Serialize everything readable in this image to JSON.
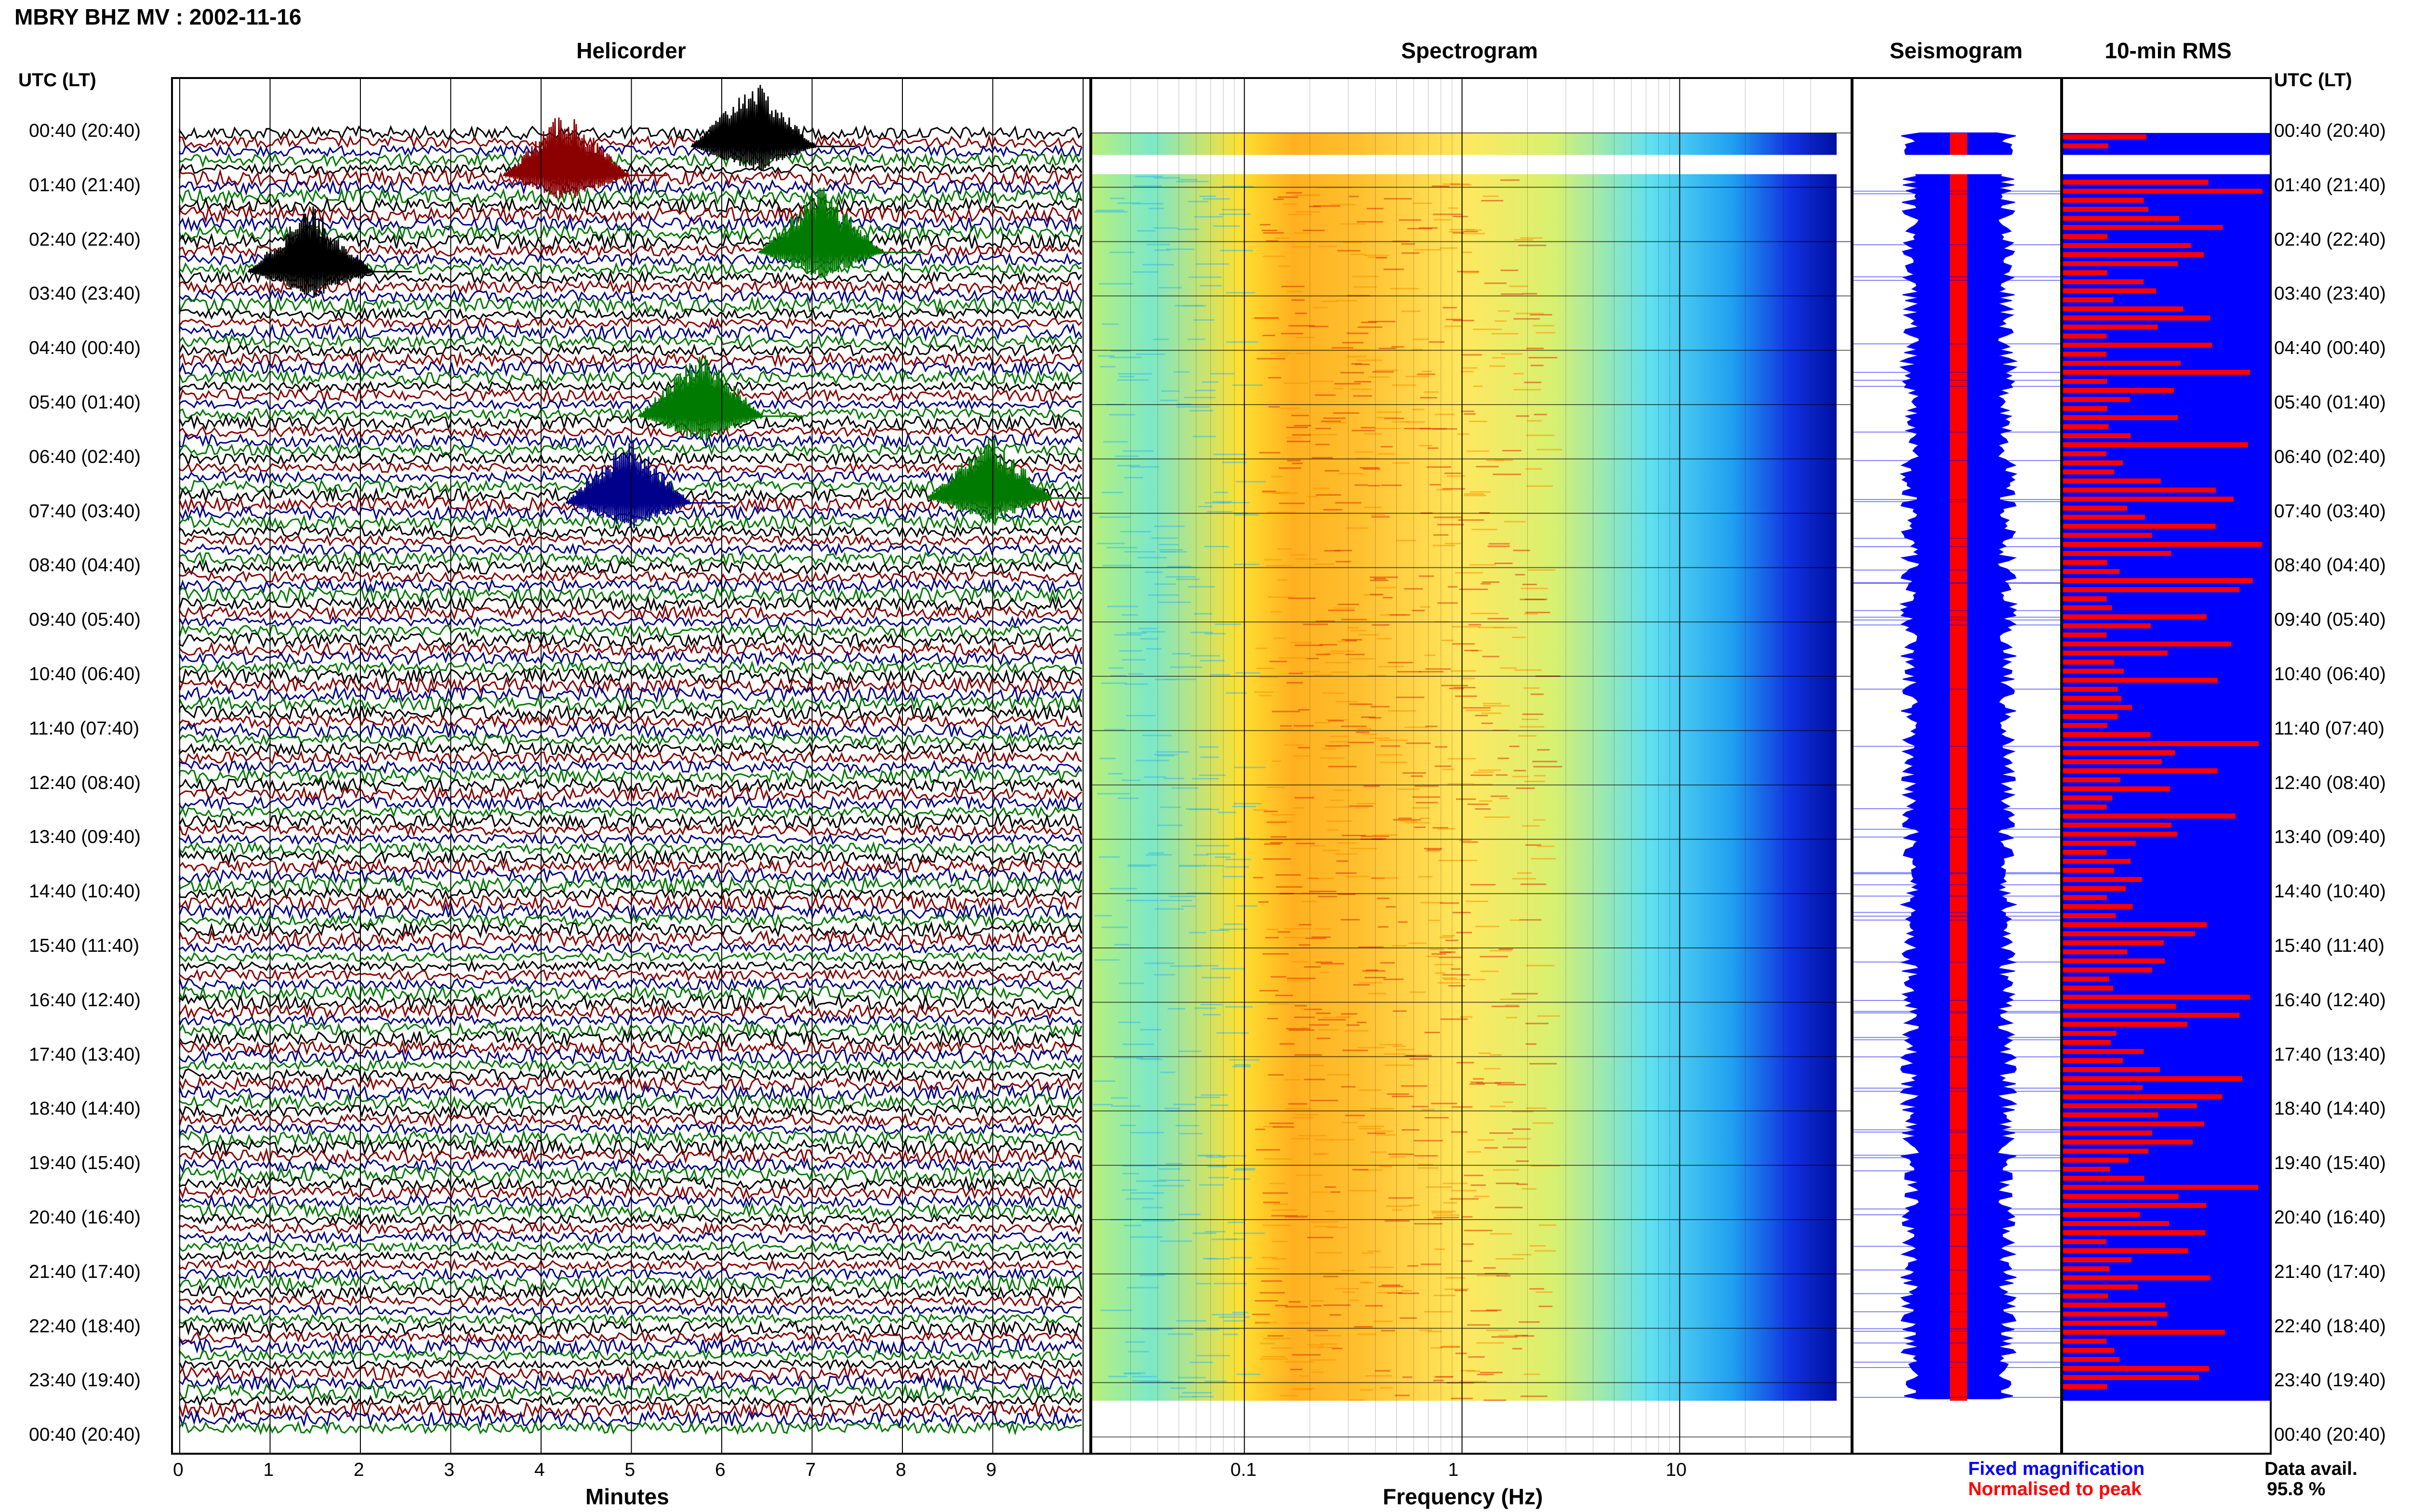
{
  "title": "MBRY BHZ MV : 2002-11-16",
  "panels": {
    "helicorder": "Helicorder",
    "spectrogram": "Spectrogram",
    "seismogram": "Seismogram",
    "rms": "10-min RMS"
  },
  "axis_header_left": "UTC (LT)",
  "axis_header_right": "UTC (LT)",
  "time_labels": [
    "00:40 (20:40)",
    "01:40 (21:40)",
    "02:40 (22:40)",
    "03:40 (23:40)",
    "04:40 (00:40)",
    "05:40 (01:40)",
    "06:40 (02:40)",
    "07:40 (03:40)",
    "08:40 (04:40)",
    "09:40 (05:40)",
    "10:40 (06:40)",
    "11:40 (07:40)",
    "12:40 (08:40)",
    "13:40 (09:40)",
    "14:40 (10:40)",
    "15:40 (11:40)",
    "16:40 (12:40)",
    "17:40 (13:40)",
    "18:40 (14:40)",
    "19:40 (15:40)",
    "20:40 (16:40)",
    "21:40 (17:40)",
    "22:40 (18:40)",
    "23:40 (19:40)",
    "00:40 (20:40)"
  ],
  "minute_ticks": [
    "0",
    "1",
    "2",
    "3",
    "4",
    "5",
    "6",
    "7",
    "8",
    "9"
  ],
  "xlabel_helicorder": "Minutes",
  "freq_ticks": [
    "0.1",
    "1",
    "10"
  ],
  "xlabel_spectrogram": "Frequency (Hz)",
  "legend": {
    "fixed": "Fixed magnification",
    "normalised": "Normalised to peak",
    "fixed_color": "#0000ff",
    "normalised_color": "#ff0000"
  },
  "data_avail": {
    "label": "Data avail.",
    "value": "95.8 %"
  },
  "colors": {
    "trace_black": "#000000",
    "trace_red": "#8b0000",
    "trace_blue": "#00008b",
    "trace_green": "#007a00",
    "spec_low": "#1f3fff",
    "spec_mid": "#ffd400",
    "spec_high": "#e03000",
    "rms_bar": "#ff0000",
    "rms_bg": "#0000ff"
  },
  "chart_data": [
    {
      "type": "heatmap",
      "title": "Helicorder",
      "xlabel": "Minutes",
      "xlim": [
        0,
        10
      ],
      "y_categories": [
        "00:40 (20:40)",
        "01:40 (21:40)",
        "02:40 (22:40)",
        "03:40 (23:40)",
        "04:40 (00:40)",
        "05:40 (01:40)",
        "06:40 (02:40)",
        "07:40 (03:40)",
        "08:40 (04:40)",
        "09:40 (05:40)",
        "10:40 (06:40)",
        "11:40 (07:40)",
        "12:40 (08:40)",
        "13:40 (09:40)",
        "14:40 (10:40)",
        "15:40 (11:40)",
        "16:40 (12:40)",
        "17:40 (13:40)",
        "18:40 (14:40)",
        "19:40 (15:40)",
        "20:40 (16:40)",
        "21:40 (17:40)",
        "22:40 (18:40)",
        "23:40 (19:40)",
        "00:40 (20:40)"
      ]
    },
    {
      "type": "heatmap",
      "title": "Spectrogram",
      "xlabel": "Frequency (Hz)",
      "xscale": "log",
      "xlim": [
        0.02,
        50
      ],
      "peak_band_hz": [
        0.15,
        0.6
      ]
    },
    {
      "type": "line",
      "title": "Seismogram",
      "series": [
        {
          "name": "Fixed magnification"
        },
        {
          "name": "Normalised to peak"
        }
      ]
    },
    {
      "type": "bar",
      "title": "10-min RMS",
      "data_availability_percent": 95.8
    }
  ]
}
